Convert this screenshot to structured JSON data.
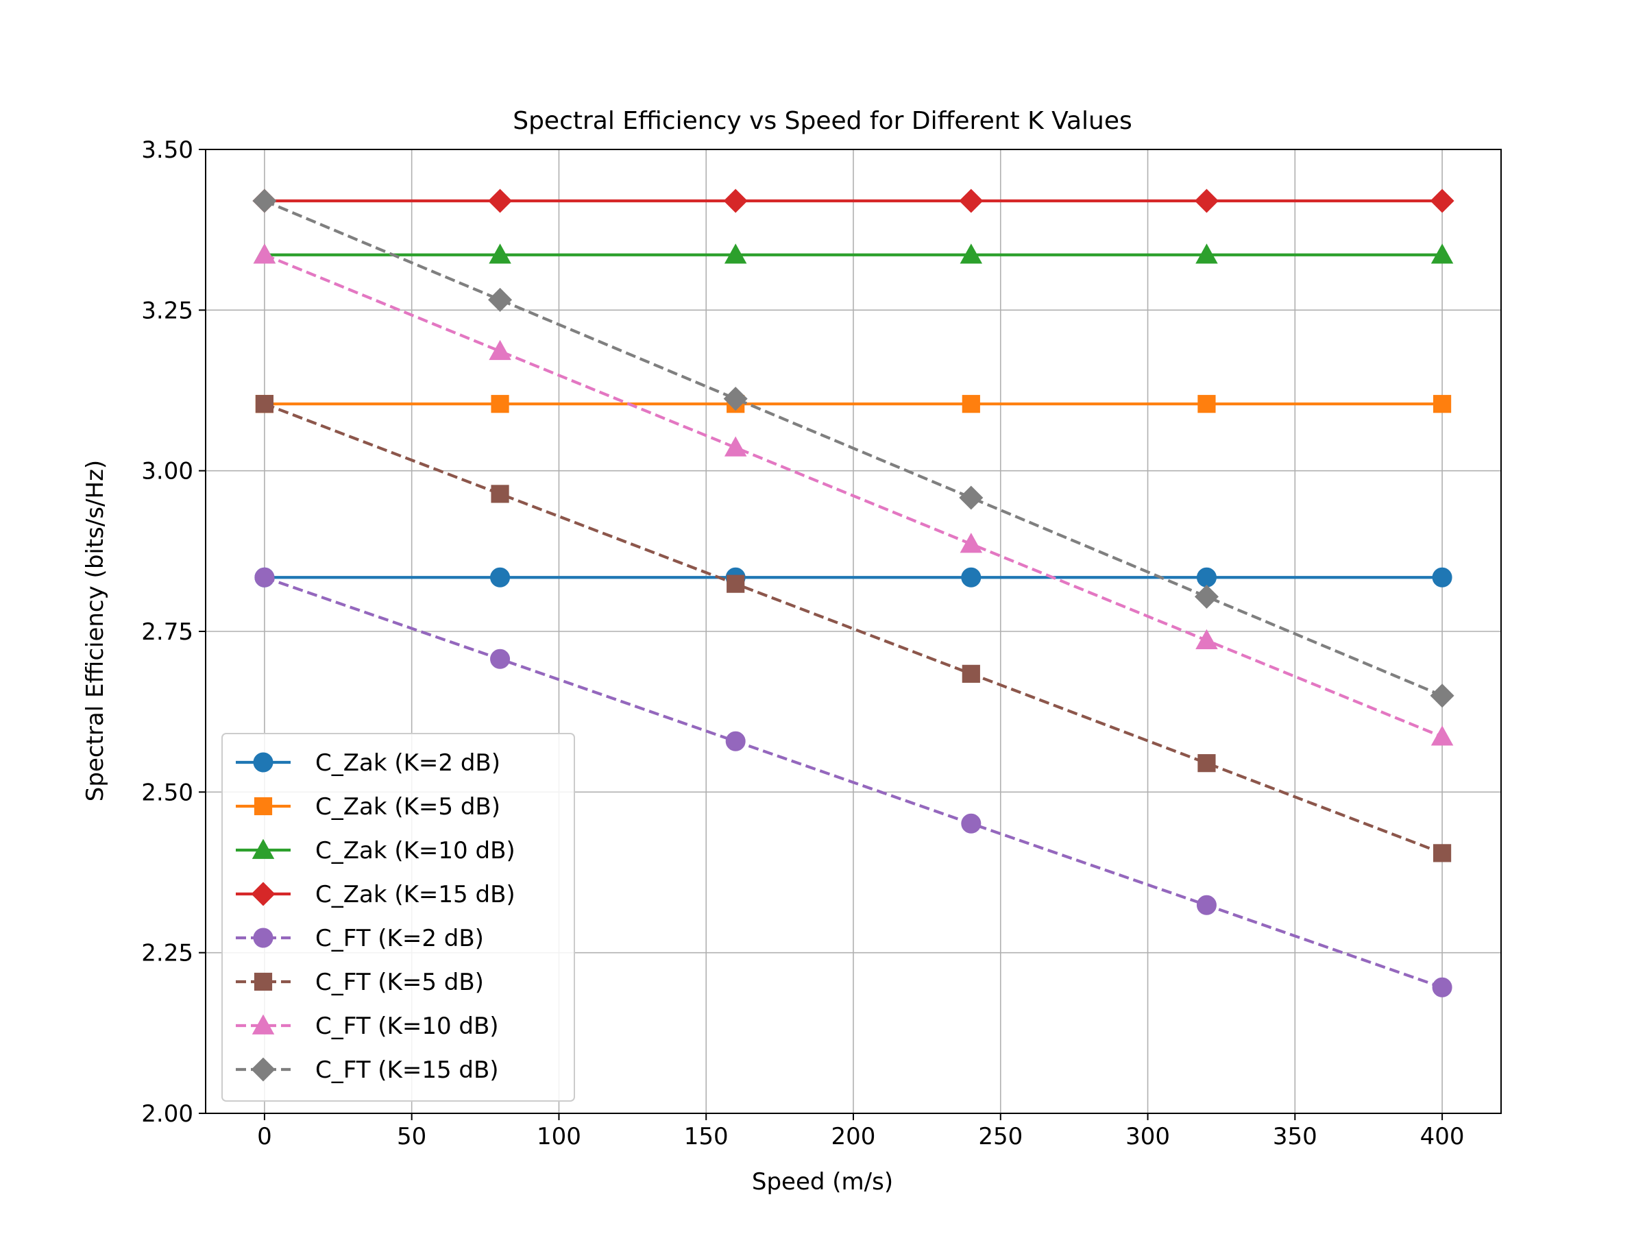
{
  "chart_data": {
    "type": "line",
    "title": "Spectral Efficiency vs Speed for Different K Values",
    "xlabel": "Speed (m/s)",
    "ylabel": "Spectral Efficiency (bits/s/Hz)",
    "xlim": [
      -20,
      420
    ],
    "ylim": [
      2.0,
      3.5
    ],
    "xticks": [
      0,
      50,
      100,
      150,
      200,
      250,
      300,
      350,
      400
    ],
    "xtick_labels": [
      "0",
      "50",
      "100",
      "150",
      "200",
      "250",
      "300",
      "350",
      "400"
    ],
    "yticks": [
      2.0,
      2.25,
      2.5,
      2.75,
      3.0,
      3.25,
      3.5
    ],
    "ytick_labels": [
      "2.00",
      "2.25",
      "2.50",
      "2.75",
      "3.00",
      "3.25",
      "3.50"
    ],
    "grid": true,
    "legend_position": "lower-left",
    "x": [
      0,
      80,
      160,
      240,
      320,
      400
    ],
    "series": [
      {
        "name": "C_Zak (K=2 dB)",
        "color": "#1f77b4",
        "linestyle": "solid",
        "marker": "circle",
        "values": [
          2.834,
          2.834,
          2.834,
          2.834,
          2.834,
          2.834
        ]
      },
      {
        "name": "C_Zak (K=5 dB)",
        "color": "#ff7f0e",
        "linestyle": "solid",
        "marker": "square",
        "values": [
          3.104,
          3.104,
          3.104,
          3.104,
          3.104,
          3.104
        ]
      },
      {
        "name": "C_Zak (K=10 dB)",
        "color": "#2ca02c",
        "linestyle": "solid",
        "marker": "triangle",
        "values": [
          3.336,
          3.336,
          3.336,
          3.336,
          3.336,
          3.336
        ]
      },
      {
        "name": "C_Zak (K=15 dB)",
        "color": "#d62728",
        "linestyle": "solid",
        "marker": "diamond",
        "values": [
          3.42,
          3.42,
          3.42,
          3.42,
          3.42,
          3.42
        ]
      },
      {
        "name": "C_FT (K=2 dB)",
        "color": "#9467bd",
        "linestyle": "dashed",
        "marker": "circle",
        "values": [
          2.834,
          2.707,
          2.579,
          2.451,
          2.324,
          2.196
        ]
      },
      {
        "name": "C_FT (K=5 dB)",
        "color": "#8c564b",
        "linestyle": "dashed",
        "marker": "square",
        "values": [
          3.104,
          2.964,
          2.824,
          2.684,
          2.545,
          2.405
        ]
      },
      {
        "name": "C_FT (K=10 dB)",
        "color": "#e377c2",
        "linestyle": "dashed",
        "marker": "triangle",
        "values": [
          3.336,
          3.186,
          3.036,
          2.886,
          2.736,
          2.586
        ]
      },
      {
        "name": "C_FT (K=15 dB)",
        "color": "#7f7f7f",
        "linestyle": "dashed",
        "marker": "diamond",
        "values": [
          3.42,
          3.266,
          3.112,
          2.958,
          2.804,
          2.65
        ]
      }
    ]
  }
}
